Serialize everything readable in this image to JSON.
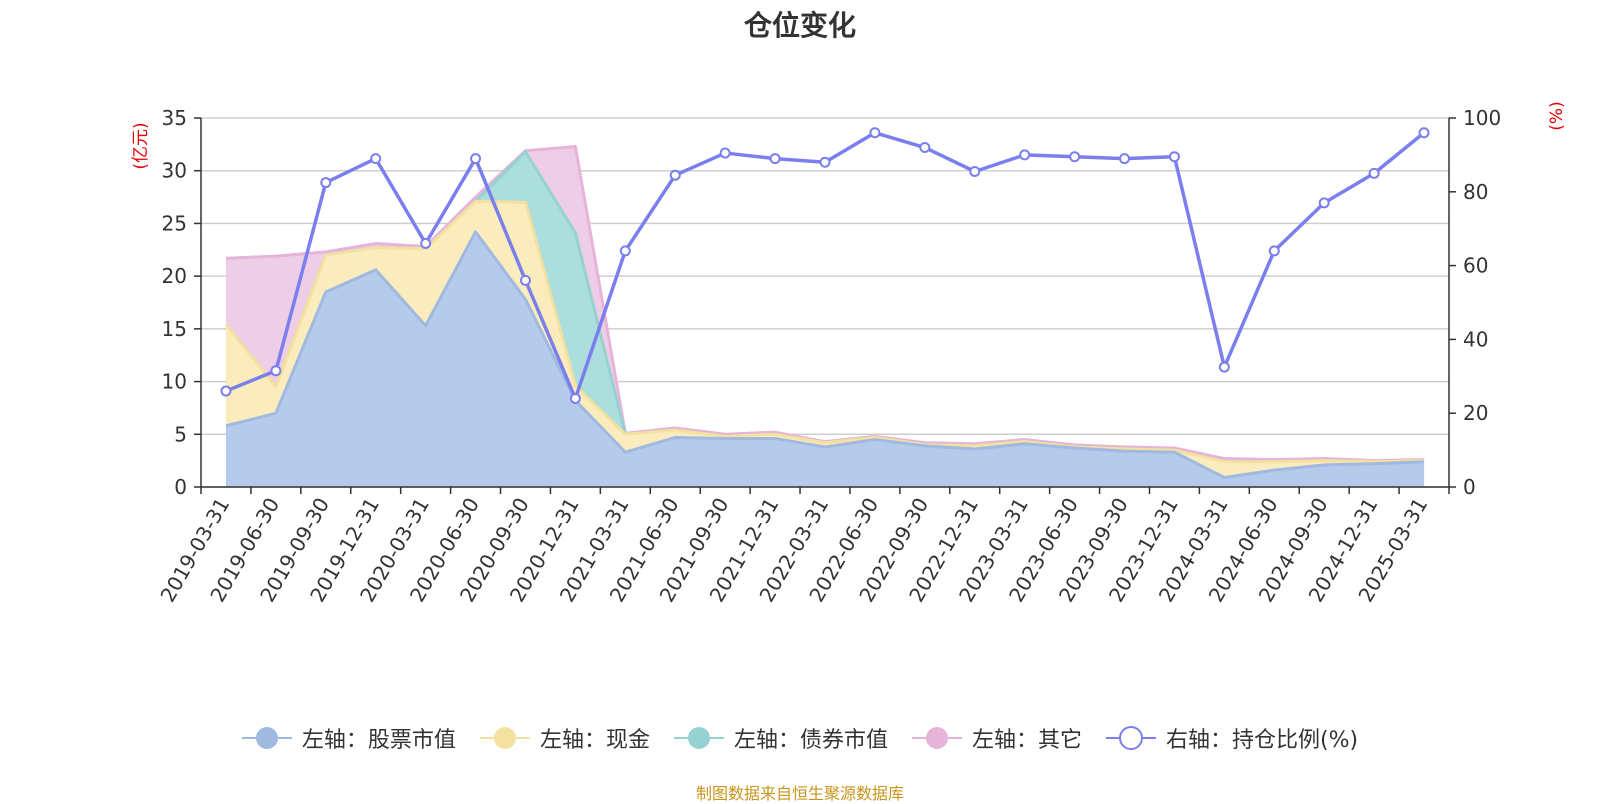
{
  "chart_data": {
    "type": "area",
    "title": "仓位变化",
    "y_left_unit": "(亿元)",
    "y_right_unit": "(%)",
    "y_left_lim": [
      0,
      35
    ],
    "y_left_ticks": [
      "0",
      "5",
      "10",
      "15",
      "20",
      "25",
      "30",
      "35"
    ],
    "y_right_lim": [
      0,
      100
    ],
    "y_right_ticks": [
      "0",
      "20",
      "40",
      "60",
      "80",
      "100"
    ],
    "grid": true,
    "legend_position": "bottom",
    "categories": [
      "2019-03-31",
      "2019-06-30",
      "2019-09-30",
      "2019-12-31",
      "2020-03-31",
      "2020-06-30",
      "2020-09-30",
      "2020-12-31",
      "2021-03-31",
      "2021-06-30",
      "2021-09-30",
      "2021-12-31",
      "2022-03-31",
      "2022-06-30",
      "2022-09-30",
      "2022-12-31",
      "2023-03-31",
      "2023-06-30",
      "2023-09-30",
      "2023-12-31",
      "2024-03-31",
      "2024-06-30",
      "2024-09-30",
      "2024-12-31",
      "2025-03-31"
    ],
    "series": [
      {
        "name": "左轴：股票市值",
        "axis": "left",
        "stack": true,
        "color": "#a0b9e1",
        "fill": "#b6cbeb",
        "values": [
          5.8,
          7.0,
          18.5,
          20.6,
          15.3,
          24.2,
          17.8,
          8.2,
          3.3,
          4.7,
          4.6,
          4.6,
          3.8,
          4.5,
          3.9,
          3.6,
          4.1,
          3.7,
          3.4,
          3.3,
          0.9,
          1.6,
          2.1,
          2.2,
          2.4
        ]
      },
      {
        "name": "左轴：现金",
        "axis": "left",
        "stack": true,
        "color": "#f5e19f",
        "fill": "#faecbd",
        "values": [
          9.6,
          2.5,
          3.5,
          2.1,
          7.3,
          2.9,
          9.2,
          1.4,
          1.7,
          0.7,
          0.2,
          0.4,
          0.4,
          0.2,
          0.1,
          0.3,
          0.2,
          0.1,
          0.2,
          0.2,
          1.5,
          0.8,
          0.4,
          0.2,
          0.1
        ]
      },
      {
        "name": "左轴：债券市值",
        "axis": "left",
        "stack": true,
        "color": "#96d2d2",
        "fill": "#acdede",
        "values": [
          0,
          0,
          0,
          0,
          0,
          0,
          4.8,
          14.5,
          0,
          0,
          0,
          0,
          0,
          0,
          0,
          0,
          0,
          0,
          0,
          0,
          0,
          0,
          0,
          0,
          0
        ]
      },
      {
        "name": "左轴：其它",
        "axis": "left",
        "stack": true,
        "color": "#e6b4d9",
        "fill": "#eecde6",
        "values": [
          6.3,
          12.4,
          0.3,
          0.4,
          0.2,
          0.4,
          0.1,
          8.2,
          0.1,
          0.2,
          0.2,
          0.2,
          0.1,
          0.1,
          0.2,
          0.2,
          0.2,
          0.2,
          0.2,
          0.2,
          0.3,
          0.2,
          0.2,
          0.1,
          0.1
        ]
      },
      {
        "name": "右轴：持仓比例(%)",
        "axis": "right",
        "type": "line",
        "color": "#7b7fee",
        "values": [
          26.0,
          31.5,
          82.5,
          89.0,
          66.0,
          89.0,
          56.0,
          24.0,
          64.0,
          84.5,
          90.5,
          89.0,
          88.0,
          96.0,
          92.0,
          85.5,
          90.0,
          89.5,
          89.0,
          89.5,
          32.5,
          64.0,
          77.0,
          85.0,
          96.0
        ]
      }
    ]
  },
  "source_text": "制图数据来自恒生聚源数据库",
  "colors": {
    "unit": "#e60000",
    "source": "#c8961e",
    "axis": "#333333",
    "grid": "#cfcfcf"
  }
}
